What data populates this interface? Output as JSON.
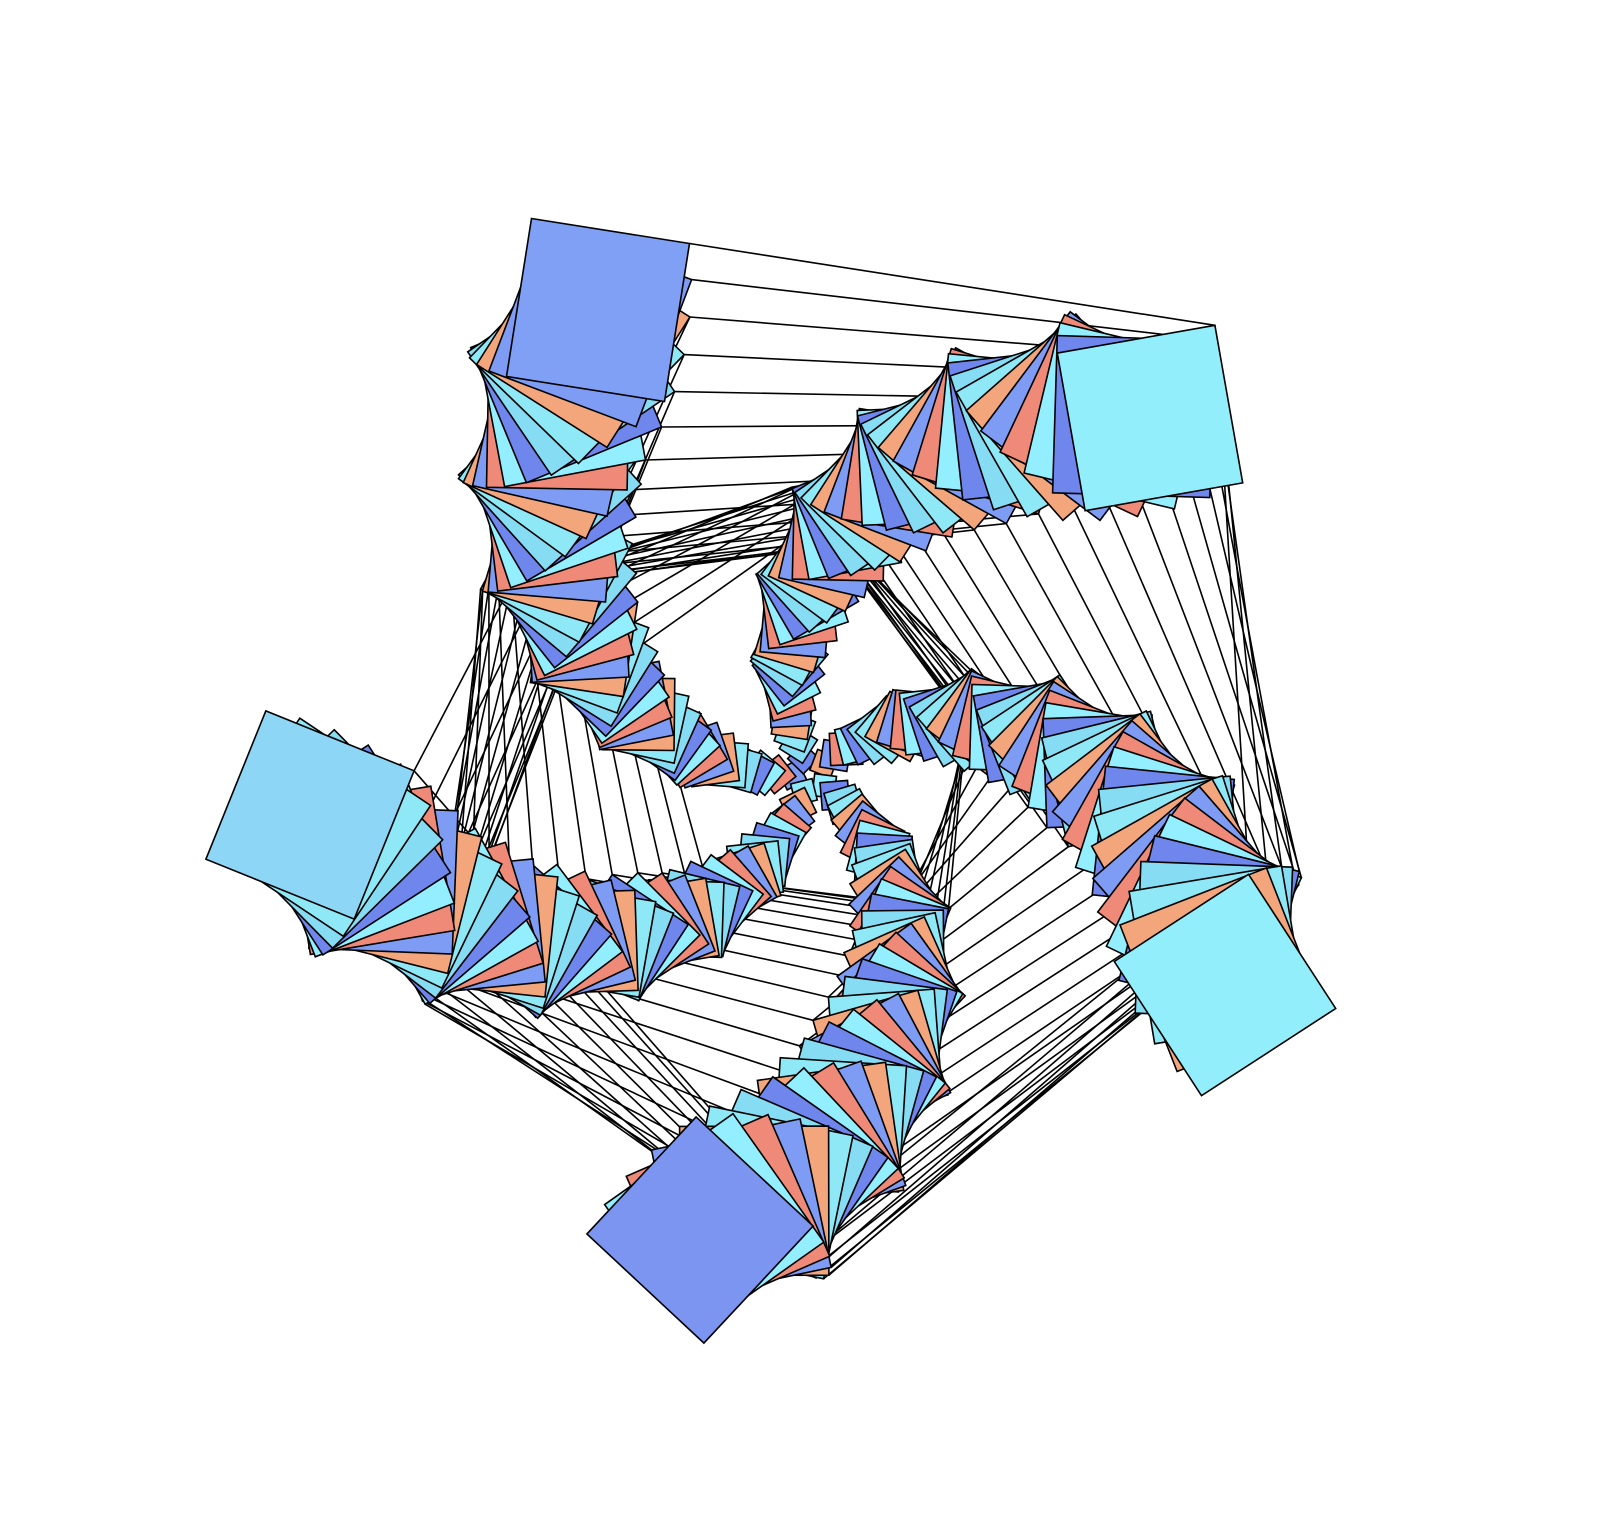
{
  "figure": {
    "kind": "pentagonal spiral of rotated squares",
    "arms": 5,
    "squares_per_arm": 44,
    "fill_palette": [
      "#7f9cf5",
      "#8ee8f5",
      "#6f86ec",
      "#f08a78",
      "#f3a57c",
      "#86dcf3",
      "#93efff"
    ],
    "end_square_colors": [
      "#7fa0f4",
      "#92eefa",
      "#92eefa",
      "#7b95f0",
      "#8ed6f6"
    ],
    "stroke_color": "#000000",
    "background": "#ffffff"
  }
}
